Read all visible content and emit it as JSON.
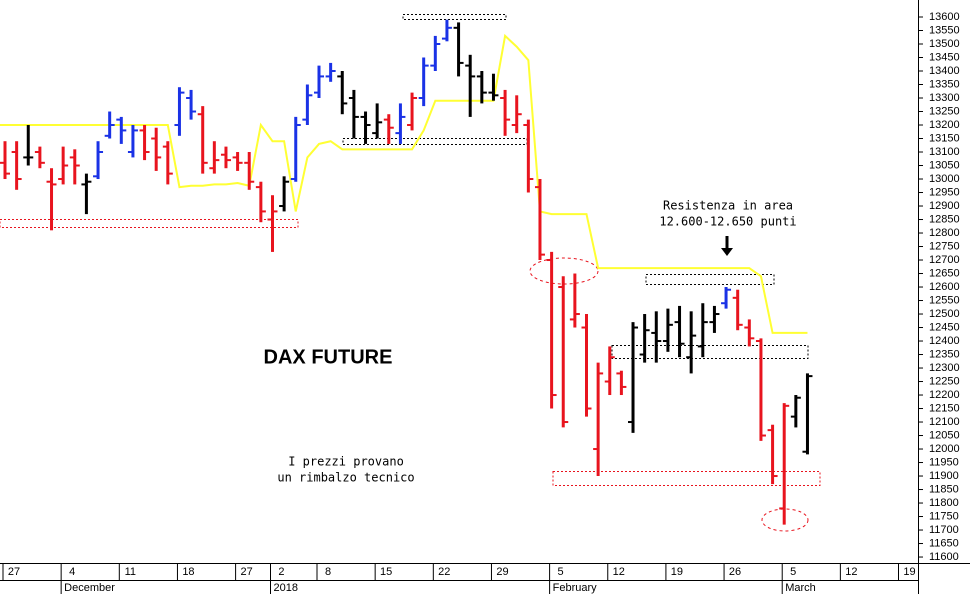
{
  "chart_data": {
    "type": "ohlc",
    "categories": [
      "27",
      null,
      null,
      null,
      null,
      "4",
      null,
      null,
      null,
      null,
      "11",
      null,
      null,
      null,
      null,
      "18",
      null,
      null,
      null,
      null,
      "27",
      null,
      null,
      "2",
      null,
      null,
      null,
      "8",
      null,
      null,
      null,
      null,
      "15",
      null,
      null,
      null,
      null,
      "22",
      null,
      null,
      null,
      null,
      "29",
      null,
      null,
      null,
      null,
      "5",
      null,
      null,
      null,
      null,
      "12",
      null,
      null,
      null,
      null,
      "19",
      null,
      null,
      null,
      null,
      "26",
      null,
      null,
      null,
      null,
      "5",
      null,
      null,
      null,
      null,
      "12",
      null,
      null,
      null,
      null,
      "19",
      null,
      null,
      null,
      null
    ],
    "months": [
      null,
      null,
      null,
      null,
      null,
      "December",
      null,
      null,
      null,
      null,
      null,
      null,
      null,
      null,
      null,
      null,
      null,
      null,
      null,
      null,
      null,
      null,
      null,
      "2018",
      null,
      null,
      null,
      null,
      null,
      null,
      null,
      null,
      null,
      null,
      null,
      null,
      null,
      null,
      null,
      null,
      null,
      null,
      null,
      null,
      null,
      null,
      null,
      "February",
      null,
      null,
      null,
      null,
      null,
      null,
      null,
      null,
      null,
      null,
      null,
      null,
      null,
      null,
      null,
      null,
      null,
      null,
      null,
      "March",
      null,
      null,
      null,
      null,
      null,
      null,
      null,
      null,
      null,
      null,
      null,
      null,
      null,
      null
    ],
    "open": [
      13060,
      13100,
      13080,
      13100,
      12990,
      13000,
      13080,
      12980,
      13010,
      13160,
      13220,
      13100,
      13180,
      13150,
      13120,
      13200,
      13300,
      13240,
      13040,
      13090,
      13080,
      13060,
      12970,
      12850,
      12900,
      13000,
      13220,
      13320,
      13380,
      13380,
      13300,
      13230,
      13170,
      13220,
      13170,
      13200,
      13300,
      13420,
      13520,
      13560,
      13420,
      13380,
      13320,
      13300,
      13200,
      13200,
      12970,
      12700,
      12600,
      12480,
      12450,
      12000,
      12250,
      12280,
      12100,
      12350,
      12430,
      12400,
      12470,
      12340,
      12380,
      12470,
      12540,
      12560,
      12450,
      12400,
      12070,
      11780,
      12120,
      11990,
      null,
      null,
      null,
      null,
      null,
      null,
      null,
      null,
      null,
      null,
      null,
      null
    ],
    "high": [
      13140,
      13140,
      13200,
      13120,
      13040,
      13120,
      13110,
      13020,
      13140,
      13250,
      13230,
      13200,
      13200,
      13190,
      13140,
      13340,
      13330,
      13270,
      13140,
      13120,
      13100,
      13100,
      12990,
      12940,
      13010,
      13230,
      13350,
      13420,
      13430,
      13400,
      13330,
      13250,
      13280,
      13240,
      13280,
      13320,
      13450,
      13530,
      13590,
      13580,
      13460,
      13400,
      13390,
      13330,
      13310,
      13220,
      13000,
      12730,
      12640,
      12650,
      12500,
      12320,
      12380,
      12290,
      12470,
      12500,
      12510,
      12520,
      12530,
      12510,
      12540,
      12530,
      12600,
      12590,
      12480,
      12410,
      12090,
      12170,
      12200,
      12280,
      null,
      null,
      null,
      null,
      null,
      null,
      null,
      null,
      null,
      null,
      null,
      null
    ],
    "low": [
      13000,
      12960,
      13050,
      13040,
      12810,
      12980,
      12980,
      12870,
      13000,
      13150,
      13130,
      13080,
      13070,
      13030,
      12980,
      13160,
      13220,
      13020,
      13020,
      13040,
      13030,
      12960,
      12840,
      12730,
      12880,
      12990,
      13200,
      13300,
      13360,
      13240,
      13150,
      13130,
      13150,
      13130,
      13130,
      13180,
      13270,
      13400,
      13510,
      13380,
      13230,
      13280,
      13290,
      13160,
      13170,
      12950,
      12700,
      12150,
      12080,
      12450,
      12120,
      11900,
      12200,
      12200,
      12060,
      12320,
      12320,
      12360,
      12340,
      12280,
      12340,
      12430,
      12520,
      12440,
      12380,
      12030,
      11870,
      11720,
      12080,
      11980,
      null,
      null,
      null,
      null,
      null,
      null,
      null,
      null,
      null,
      null,
      null,
      null
    ],
    "close": [
      13020,
      13000,
      13080,
      13060,
      12980,
      13050,
      13050,
      12990,
      13100,
      13200,
      13180,
      13180,
      13100,
      13080,
      13020,
      13320,
      13250,
      13060,
      13070,
      13070,
      13060,
      12990,
      12880,
      12880,
      12990,
      13200,
      13310,
      13380,
      13400,
      13280,
      13230,
      13200,
      13210,
      13190,
      13230,
      13300,
      13420,
      13500,
      13560,
      13430,
      13380,
      13320,
      13310,
      13220,
      13240,
      13000,
      12720,
      12200,
      12100,
      12500,
      12150,
      12280,
      12340,
      12230,
      12450,
      12440,
      12400,
      12460,
      12390,
      12420,
      12470,
      12500,
      12590,
      12460,
      12410,
      12050,
      11900,
      12160,
      12190,
      12270,
      null,
      null,
      null,
      null,
      null,
      null,
      null,
      null,
      null,
      null,
      null,
      null
    ],
    "bar_colors": [
      "#e8141e",
      "#e8141e",
      "#000000",
      "#e8141e",
      "#e8141e",
      "#e8141e",
      "#e8141e",
      "#000000",
      "#1a32e6",
      "#1a32e6",
      "#1a32e6",
      "#1a32e6",
      "#e8141e",
      "#e8141e",
      "#e8141e",
      "#1a32e6",
      "#1a32e6",
      "#e8141e",
      "#e8141e",
      "#e8141e",
      "#e8141e",
      "#e8141e",
      "#e8141e",
      "#e8141e",
      "#000000",
      "#1a32e6",
      "#1a32e6",
      "#1a32e6",
      "#1a32e6",
      "#000000",
      "#000000",
      "#000000",
      "#000000",
      "#e8141e",
      "#1a32e6",
      "#e8141e",
      "#1a32e6",
      "#1a32e6",
      "#1a32e6",
      "#000000",
      "#000000",
      "#000000",
      "#000000",
      "#e8141e",
      "#e8141e",
      "#e8141e",
      "#e8141e",
      "#e8141e",
      "#e8141e",
      "#e8141e",
      "#e8141e",
      "#e8141e",
      "#e8141e",
      "#e8141e",
      "#000000",
      "#000000",
      "#000000",
      "#000000",
      "#000000",
      "#000000",
      "#000000",
      "#000000",
      "#1a32e6",
      "#e8141e",
      "#e8141e",
      "#e8141e",
      "#e8141e",
      "#e8141e",
      "#000000",
      "#000000",
      null,
      null,
      null,
      null,
      null,
      null,
      null,
      null,
      null,
      null,
      null,
      null
    ],
    "stop_line": {
      "color": "#ffff33",
      "values": [
        13200,
        13200,
        13200,
        13200,
        13200,
        13200,
        13200,
        13200,
        13200,
        13200,
        13200,
        13200,
        13200,
        13200,
        13200,
        12970,
        12975,
        12975,
        12980,
        12980,
        12985,
        12975,
        13200,
        13140,
        13140,
        12880,
        13080,
        13130,
        13140,
        13110,
        13110,
        13110,
        13110,
        13110,
        13110,
        13110,
        13180,
        13290,
        13290,
        13290,
        13290,
        13290,
        13290,
        13530,
        13490,
        13440,
        12880,
        12870,
        12870,
        12870,
        12870,
        12670,
        12670,
        12670,
        12670,
        12670,
        12670,
        12670,
        12670,
        12670,
        12670,
        12670,
        12670,
        12670,
        12670,
        12640,
        12430,
        12430,
        12430,
        12430,
        null,
        null,
        null,
        null,
        null,
        null,
        null,
        null,
        null,
        null,
        null,
        null
      ]
    },
    "ylim": [
      11589,
      13663
    ],
    "yticks": [
      11600,
      11650,
      11700,
      11750,
      11800,
      11850,
      11900,
      11950,
      12000,
      12050,
      12100,
      12150,
      12200,
      12250,
      12300,
      12350,
      12400,
      12450,
      12500,
      12550,
      12600,
      12650,
      12700,
      12750,
      12800,
      12850,
      12900,
      12950,
      13000,
      13050,
      13100,
      13150,
      13200,
      13250,
      13300,
      13350,
      13400,
      13450,
      13500,
      13550,
      13600
    ],
    "title": "DAX FUTURE",
    "note_lines": [
      "I prezzi provano",
      "un rimbalzo tecnico"
    ],
    "resistance_lines": [
      "Resistenza in area",
      "12.600-12.650 punti"
    ]
  }
}
